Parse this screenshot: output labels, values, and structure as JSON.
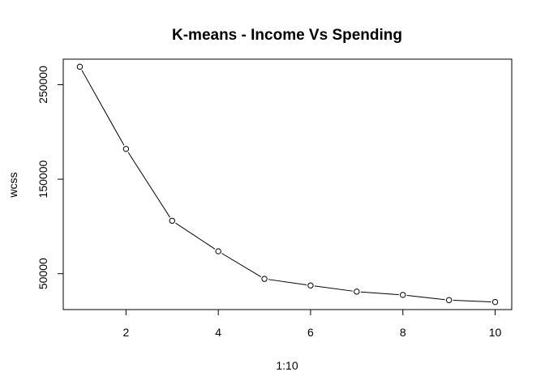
{
  "chart_data": {
    "type": "line",
    "title": "K-means - Income Vs Spending",
    "xlabel": "1:10",
    "ylabel": "wcss",
    "x": [
      1,
      2,
      3,
      4,
      5,
      6,
      7,
      8,
      9,
      10
    ],
    "series": [
      {
        "values": [
          269000,
          182000,
          106000,
          73700,
          44500,
          37500,
          31000,
          27500,
          22000,
          20000
        ],
        "marker": "open-circle",
        "color": "#000000"
      }
    ],
    "xticks": [
      2,
      4,
      6,
      8,
      10
    ],
    "yticks": [
      50000,
      150000,
      250000
    ],
    "xlim": [
      0.64,
      10.36
    ],
    "ylim": [
      12000,
      277000
    ],
    "grid": false,
    "legend": "none"
  }
}
